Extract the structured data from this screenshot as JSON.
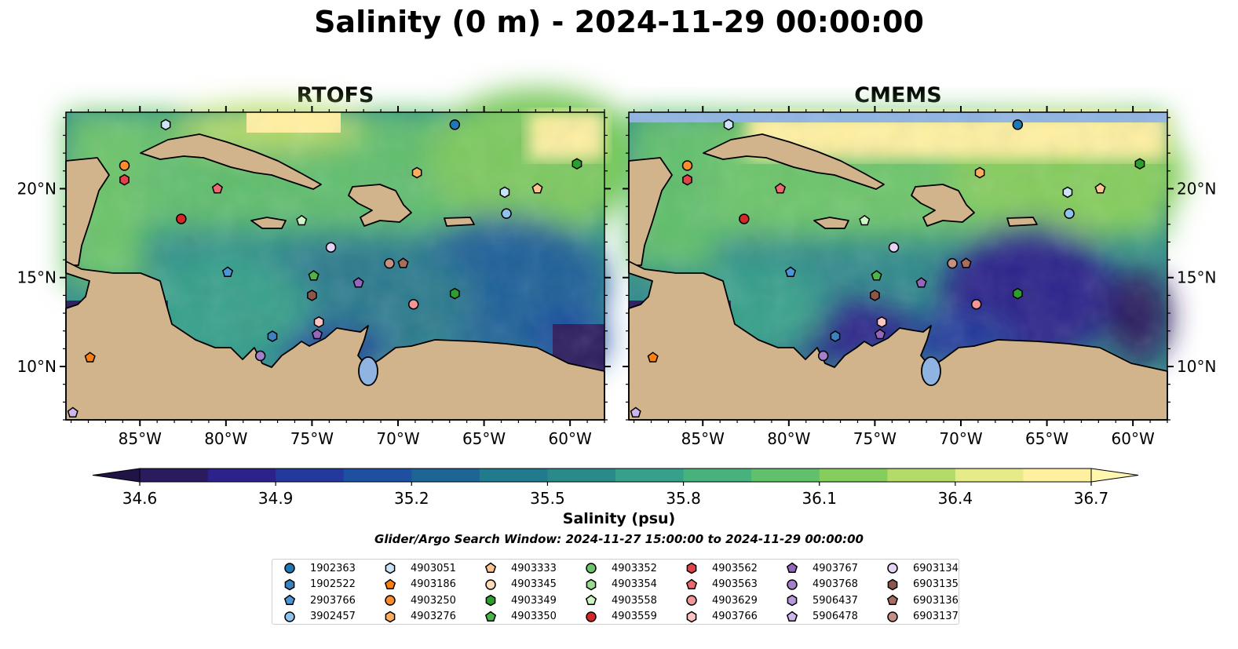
{
  "title": "Salinity (0 m) - 2024-11-29 00:00:00",
  "panels": [
    {
      "title": "RTOFS"
    },
    {
      "title": "CMEMS"
    }
  ],
  "map": {
    "lon_range": [
      -89.3,
      -58.0
    ],
    "lat_range": [
      7.0,
      24.3
    ],
    "lon_ticks": [
      "85°W",
      "80°W",
      "75°W",
      "70°W",
      "65°W",
      "60°W"
    ],
    "lat_ticks": [
      "10°N",
      "15°N",
      "20°N"
    ]
  },
  "colorbar": {
    "label": "Salinity (psu)",
    "min": 34.6,
    "max": 36.7,
    "tick_labels": [
      "34.6",
      "34.9",
      "35.2",
      "35.5",
      "35.8",
      "36.1",
      "36.4",
      "36.7"
    ],
    "colors": [
      "#2a1a5e",
      "#2b228a",
      "#233a9c",
      "#1f4fa0",
      "#1e6494",
      "#217a8e",
      "#2a8a8a",
      "#36a08a",
      "#47b27c",
      "#60c06c",
      "#85cd5c",
      "#b4db6a",
      "#e6eb8a",
      "#fff0a0"
    ]
  },
  "search_window": "Glider/Argo Search Window: 2024-11-27 15:00:00 to 2024-11-29 00:00:00",
  "legend": [
    {
      "id": "1902363",
      "marker": "circle",
      "color": "#1f77b4"
    },
    {
      "id": "1902522",
      "marker": "hexagon",
      "color": "#3d82c0"
    },
    {
      "id": "2903766",
      "marker": "pentagon",
      "color": "#4b96d6"
    },
    {
      "id": "3902457",
      "marker": "circle",
      "color": "#8fc3ee"
    },
    {
      "id": "4903051",
      "marker": "hexagon",
      "color": "#c9e3f7"
    },
    {
      "id": "4903186",
      "marker": "pentagon",
      "color": "#ff7f0e"
    },
    {
      "id": "4903250",
      "marker": "circle",
      "color": "#ff8c2a"
    },
    {
      "id": "4903276",
      "marker": "hexagon",
      "color": "#ffae5e"
    },
    {
      "id": "4903333",
      "marker": "pentagon",
      "color": "#ffc48f"
    },
    {
      "id": "4903345",
      "marker": "circle",
      "color": "#ffdcb9"
    },
    {
      "id": "4903349",
      "marker": "hexagon",
      "color": "#2ca02c"
    },
    {
      "id": "4903350",
      "marker": "pentagon",
      "color": "#49b648"
    },
    {
      "id": "4903352",
      "marker": "circle",
      "color": "#6cc56a"
    },
    {
      "id": "4903354",
      "marker": "hexagon",
      "color": "#99dc8f"
    },
    {
      "id": "4903558",
      "marker": "pentagon",
      "color": "#cdf5c3"
    },
    {
      "id": "4903559",
      "marker": "circle",
      "color": "#d62728"
    },
    {
      "id": "4903562",
      "marker": "hexagon",
      "color": "#e04449"
    },
    {
      "id": "4903563",
      "marker": "pentagon",
      "color": "#ec6a6d"
    },
    {
      "id": "4903629",
      "marker": "circle",
      "color": "#f49696"
    },
    {
      "id": "4903766",
      "marker": "hexagon",
      "color": "#fbc3c3"
    },
    {
      "id": "4903767",
      "marker": "pentagon",
      "color": "#9467bd"
    },
    {
      "id": "4903768",
      "marker": "circle",
      "color": "#a47fcb"
    },
    {
      "id": "5906437",
      "marker": "hexagon",
      "color": "#b899dc"
    },
    {
      "id": "5906478",
      "marker": "pentagon",
      "color": "#cfb6ea"
    },
    {
      "id": "6903134",
      "marker": "circle",
      "color": "#e6d4f6"
    },
    {
      "id": "6903135",
      "marker": "hexagon",
      "color": "#8c564b"
    },
    {
      "id": "6903136",
      "marker": "pentagon",
      "color": "#a86d5e"
    },
    {
      "id": "6903137",
      "marker": "circle",
      "color": "#c49085"
    }
  ],
  "floats": [
    {
      "id": "4903051",
      "lon": -83.5,
      "lat": 23.6
    },
    {
      "id": "1902363",
      "lon": -66.7,
      "lat": 23.6
    },
    {
      "id": "4903250",
      "lon": -85.9,
      "lat": 21.3
    },
    {
      "id": "4903562",
      "lon": -85.9,
      "lat": 20.5
    },
    {
      "id": "4903563",
      "lon": -80.5,
      "lat": 20.0
    },
    {
      "id": "4903276",
      "lon": -68.9,
      "lat": 20.9
    },
    {
      "id": "4903333",
      "lon": -61.9,
      "lat": 20.0
    },
    {
      "id": "4903051",
      "lon": -63.8,
      "lat": 19.8
    },
    {
      "id": "3902457",
      "lon": -63.7,
      "lat": 18.6
    },
    {
      "id": "4903349",
      "lon": -59.6,
      "lat": 21.4
    },
    {
      "id": "4903559",
      "lon": -82.6,
      "lat": 18.3
    },
    {
      "id": "4903558",
      "lon": -75.6,
      "lat": 18.2
    },
    {
      "id": "6903134",
      "lon": -73.9,
      "lat": 16.7
    },
    {
      "id": "6903137",
      "lon": -70.5,
      "lat": 15.8
    },
    {
      "id": "6903136",
      "lon": -69.7,
      "lat": 15.8
    },
    {
      "id": "2903766",
      "lon": -79.9,
      "lat": 15.3
    },
    {
      "id": "4903350",
      "lon": -74.9,
      "lat": 15.1
    },
    {
      "id": "4903767",
      "lon": -72.3,
      "lat": 14.7
    },
    {
      "id": "6903135",
      "lon": -75.0,
      "lat": 14.0
    },
    {
      "id": "4903349",
      "lon": -66.7,
      "lat": 14.1
    },
    {
      "id": "4903629",
      "lon": -69.1,
      "lat": 13.5
    },
    {
      "id": "4903766",
      "lon": -74.6,
      "lat": 12.5
    },
    {
      "id": "1902522",
      "lon": -77.3,
      "lat": 11.7
    },
    {
      "id": "4903767",
      "lon": -74.7,
      "lat": 11.8
    },
    {
      "id": "4903768",
      "lon": -78.0,
      "lat": 10.6
    },
    {
      "id": "4903186",
      "lon": -87.9,
      "lat": 10.5
    },
    {
      "id": "5906478",
      "lon": -88.9,
      "lat": 7.4
    }
  ]
}
